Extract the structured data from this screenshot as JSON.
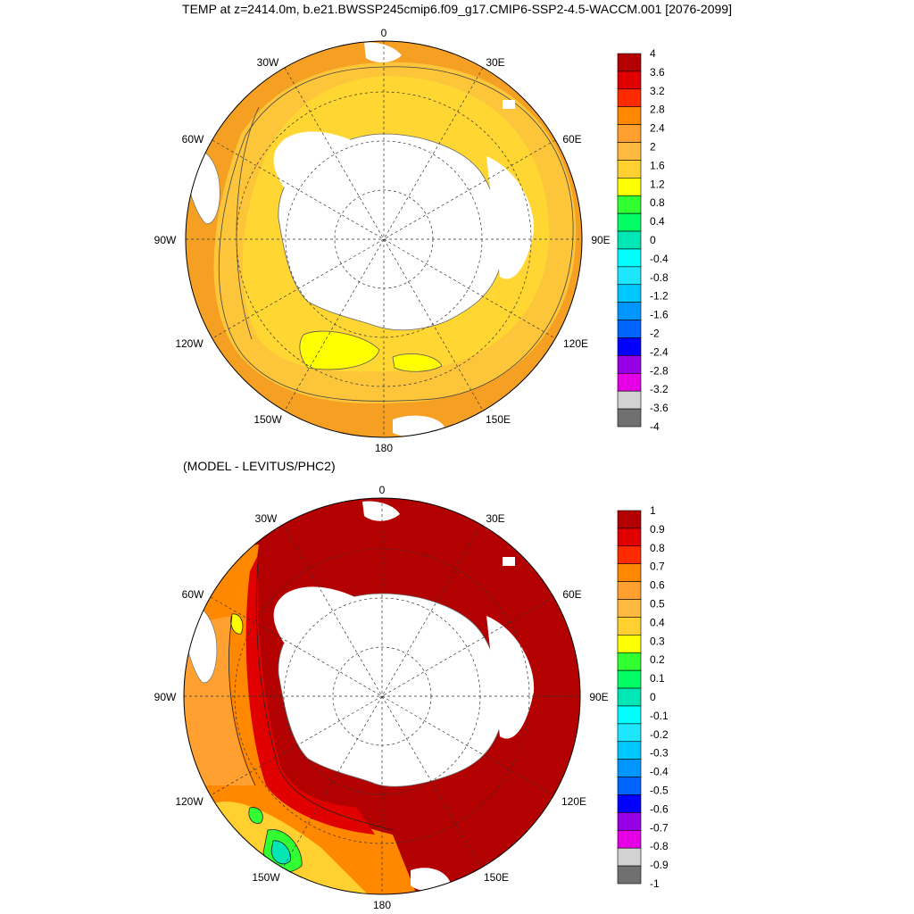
{
  "header": {
    "title": "TEMP at z=2414.0m, b.e21.BWSSP245cmip6.f09_g17.CMIP6-SSP2-4.5-WACCM.001 [2076-2099]"
  },
  "top_panel": {
    "longitude_labels": {
      "lon_0": "0",
      "lon_30e": "30E",
      "lon_60e": "60E",
      "lon_90e": "90E",
      "lon_120e": "120E",
      "lon_150e": "150E",
      "lon_180": "180",
      "lon_150w": "150W",
      "lon_120w": "120W",
      "lon_90w": "90W",
      "lon_60w": "60W",
      "lon_30w": "30W"
    },
    "colorbar": {
      "labels": [
        "4",
        "3.6",
        "3.2",
        "2.8",
        "2.4",
        "2",
        "1.6",
        "1.2",
        "0.8",
        "0.4",
        "0",
        "-0.4",
        "-0.8",
        "-1.2",
        "-1.6",
        "-2",
        "-2.4",
        "-2.8",
        "-3.2",
        "-3.6",
        "-4"
      ],
      "colors": [
        "#b30000",
        "#e00000",
        "#ff2a00",
        "#ff8800",
        "#ffa030",
        "#ffb840",
        "#ffd030",
        "#ffff00",
        "#32ff32",
        "#00ff64",
        "#00e6b4",
        "#00ffff",
        "#1ee6ff",
        "#00c8ff",
        "#0096ff",
        "#0064ff",
        "#0000ff",
        "#9600e6",
        "#e600e6",
        "#d2d2d2",
        "#707070"
      ]
    }
  },
  "bottom_panel": {
    "subtitle": "(MODEL - LEVITUS/PHC2)",
    "longitude_labels": {
      "lon_0": "0",
      "lon_30e": "30E",
      "lon_60e": "60E",
      "lon_90e": "90E",
      "lon_120e": "120E",
      "lon_150e": "150E",
      "lon_180": "180",
      "lon_150w": "150W",
      "lon_120w": "120W",
      "lon_90w": "90W",
      "lon_60w": "60W",
      "lon_30w": "30W"
    },
    "colorbar": {
      "labels": [
        "1",
        "0.9",
        "0.8",
        "0.7",
        "0.6",
        "0.5",
        "0.4",
        "0.3",
        "0.2",
        "0.1",
        "0",
        "-0.1",
        "-0.2",
        "-0.3",
        "-0.4",
        "-0.5",
        "-0.6",
        "-0.7",
        "-0.8",
        "-0.9",
        "-1"
      ],
      "colors": [
        "#b30000",
        "#e00000",
        "#ff2a00",
        "#ff8800",
        "#ffa030",
        "#ffb840",
        "#ffd030",
        "#ffff00",
        "#32ff32",
        "#00ff64",
        "#00e6b4",
        "#00ffff",
        "#1ee6ff",
        "#00c8ff",
        "#0096ff",
        "#0064ff",
        "#0000ff",
        "#9600e6",
        "#e600e6",
        "#d2d2d2",
        "#707070"
      ]
    }
  },
  "colors": {
    "land": "#ffffff",
    "top_outer_ring": "#f5a023",
    "top_mid_ring": "#fcc53a",
    "top_inner_ring": "#ffd632",
    "top_warm_patch": "#ffff00",
    "bottom_dominant": "#b30000",
    "bottom_red": "#e00000",
    "bottom_orange": "#ff8800",
    "bottom_yellow": "#ffd030",
    "bottom_green": "#32ff32"
  }
}
